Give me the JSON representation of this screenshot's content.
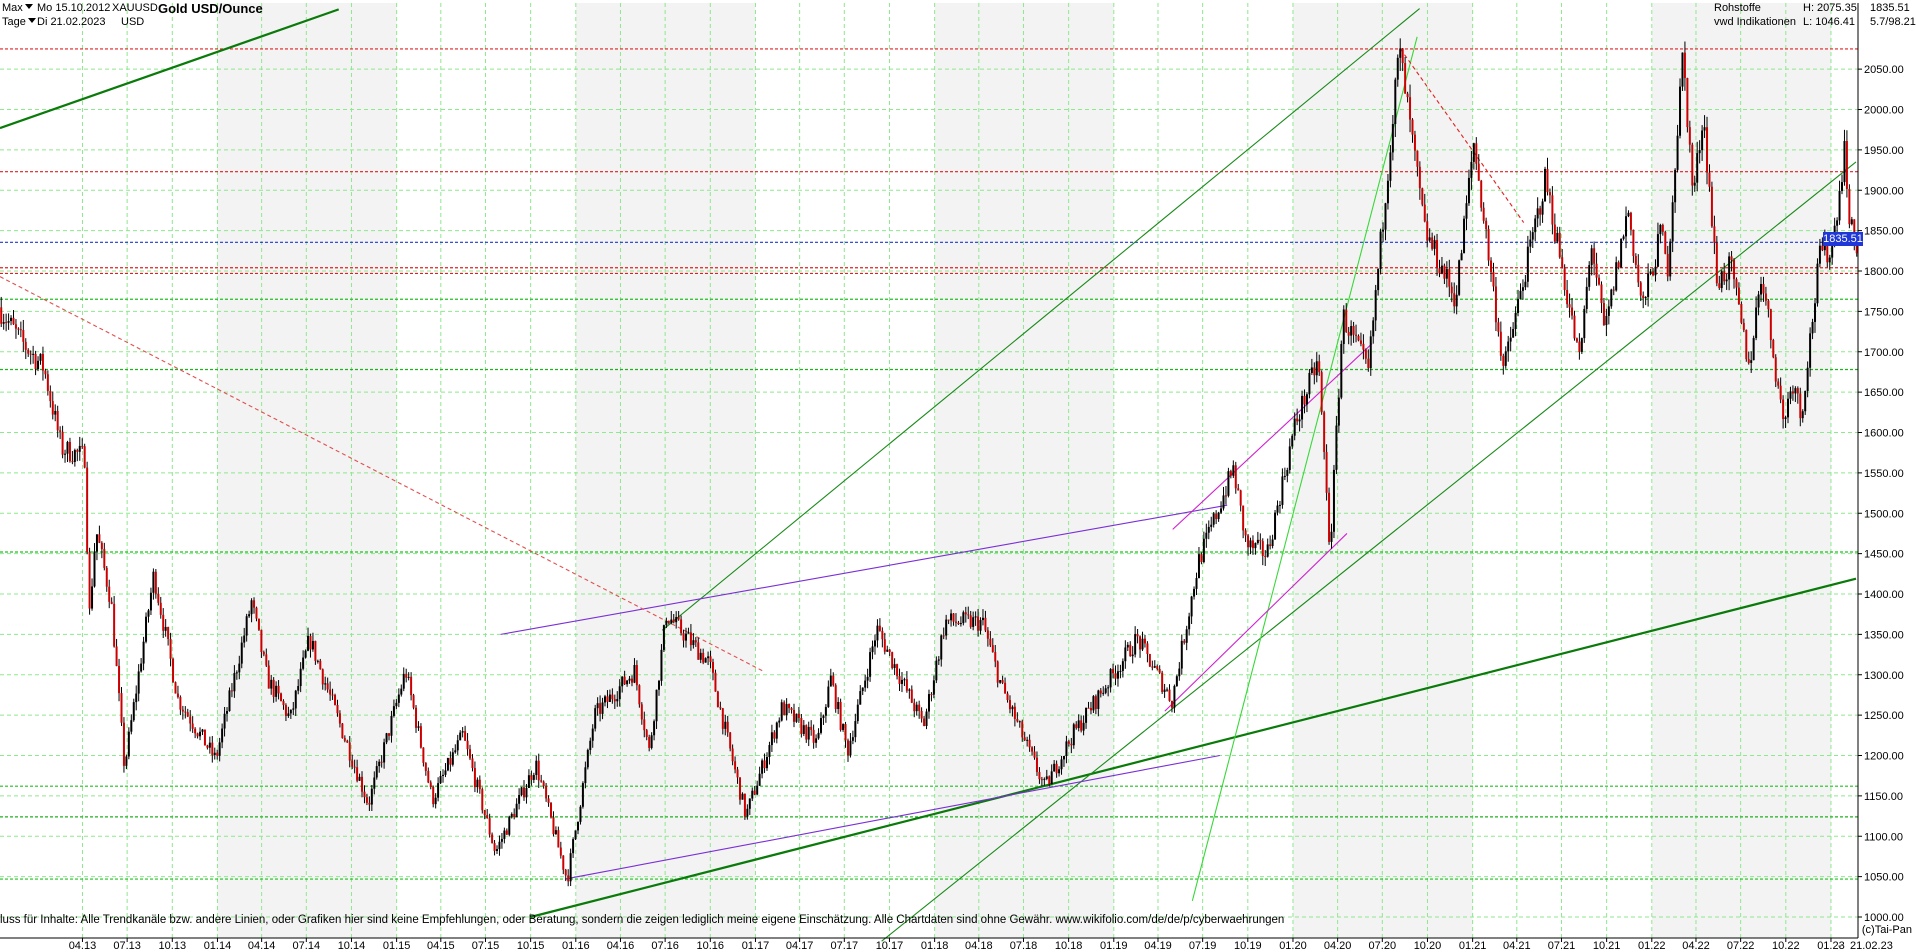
{
  "header": {
    "range_label": "Max",
    "period_label": "Tage",
    "date_from": "Mo 15.10.2012",
    "date_to": "Di 21.02.2023",
    "symbol": "XAUUSD",
    "currency": "USD",
    "title": "Gold USD/Ounce",
    "category": "Rohstoffe",
    "source": "vwd Indikationen",
    "high_label": "H: 2075.35",
    "low_label": "L: 1046.41",
    "last_value": "1835.51",
    "range_info": "5.7/98.21"
  },
  "footer": {
    "disclaimer": "luss für Inhalte: Alle Trendkanäle bzw. andere Linien, oder Grafiken hier sind keine Empfehlungen, oder Beratung, sondern die zeigen lediglich meine eigene Einschätzung. Alle Chartdaten sind ohne Gewähr.  www.wikifolio.com/de/de/p/cyberwaehrungen",
    "copyright": "(c)Tai-Pan",
    "end_date_label": "21.02.23",
    "end_dash": "-"
  },
  "chart_data": {
    "type": "candlestick",
    "title": "Gold USD/Ounce",
    "ylim": [
      1000,
      2100
    ],
    "y_ticks": [
      1000,
      1050,
      1100,
      1150,
      1200,
      1250,
      1300,
      1350,
      1400,
      1450,
      1500,
      1550,
      1600,
      1650,
      1700,
      1750,
      1800,
      1850,
      1900,
      1950,
      2000,
      2050
    ],
    "y_tick_labels": [
      "1000.00",
      "1050.00",
      "1100.00",
      "1150.00",
      "1200.00",
      "1250.00",
      "1300.00",
      "1350.00",
      "1400.00",
      "1450.00",
      "1500.00",
      "1550.00",
      "1600.00",
      "1650.00",
      "1700.00",
      "1750.00",
      "1800.00",
      "1850.00",
      "1900.00",
      "1950.00",
      "2000.00",
      "2050.00"
    ],
    "x_range": [
      "2012-10-15",
      "2023-02-21"
    ],
    "x_ticks": [
      {
        "date": "2013-04-01",
        "label": "04.13"
      },
      {
        "date": "2013-07-01",
        "label": "07.13"
      },
      {
        "date": "2013-10-01",
        "label": "10.13"
      },
      {
        "date": "2014-01-01",
        "label": "01.14"
      },
      {
        "date": "2014-04-01",
        "label": "04.14"
      },
      {
        "date": "2014-07-01",
        "label": "07.14"
      },
      {
        "date": "2014-10-01",
        "label": "10.14"
      },
      {
        "date": "2015-01-01",
        "label": "01.15"
      },
      {
        "date": "2015-04-01",
        "label": "04.15"
      },
      {
        "date": "2015-07-01",
        "label": "07.15"
      },
      {
        "date": "2015-10-01",
        "label": "10.15"
      },
      {
        "date": "2016-01-01",
        "label": "01.16"
      },
      {
        "date": "2016-04-01",
        "label": "04.16"
      },
      {
        "date": "2016-07-01",
        "label": "07.16"
      },
      {
        "date": "2016-10-01",
        "label": "10.16"
      },
      {
        "date": "2017-01-01",
        "label": "01.17"
      },
      {
        "date": "2017-04-01",
        "label": "04.17"
      },
      {
        "date": "2017-07-01",
        "label": "07.17"
      },
      {
        "date": "2017-10-01",
        "label": "10.17"
      },
      {
        "date": "2018-01-01",
        "label": "01.18"
      },
      {
        "date": "2018-04-01",
        "label": "04.18"
      },
      {
        "date": "2018-07-01",
        "label": "07.18"
      },
      {
        "date": "2018-10-01",
        "label": "10.18"
      },
      {
        "date": "2019-01-01",
        "label": "01.19"
      },
      {
        "date": "2019-04-01",
        "label": "04.19"
      },
      {
        "date": "2019-07-01",
        "label": "07.19"
      },
      {
        "date": "2019-10-01",
        "label": "10.19"
      },
      {
        "date": "2020-01-01",
        "label": "01.20"
      },
      {
        "date": "2020-04-01",
        "label": "04.20"
      },
      {
        "date": "2020-07-01",
        "label": "07.20"
      },
      {
        "date": "2020-10-01",
        "label": "10.20"
      },
      {
        "date": "2021-01-01",
        "label": "01.21"
      },
      {
        "date": "2021-04-01",
        "label": "04.21"
      },
      {
        "date": "2021-07-01",
        "label": "07.21"
      },
      {
        "date": "2021-10-01",
        "label": "10.21"
      },
      {
        "date": "2022-01-01",
        "label": "01.22"
      },
      {
        "date": "2022-04-01",
        "label": "04.22"
      },
      {
        "date": "2022-07-01",
        "label": "07.22"
      },
      {
        "date": "2022-10-01",
        "label": "10.22"
      },
      {
        "date": "2023-01-01",
        "label": "01.23"
      }
    ],
    "price_path": [
      {
        "date": "2012-10-15",
        "price": 1755
      },
      {
        "date": "2012-12-01",
        "price": 1712
      },
      {
        "date": "2013-01-15",
        "price": 1680
      },
      {
        "date": "2013-02-20",
        "price": 1580
      },
      {
        "date": "2013-04-10",
        "price": 1570
      },
      {
        "date": "2013-04-16",
        "price": 1360
      },
      {
        "date": "2013-05-01",
        "price": 1480
      },
      {
        "date": "2013-06-01",
        "price": 1390
      },
      {
        "date": "2013-06-28",
        "price": 1185
      },
      {
        "date": "2013-08-27",
        "price": 1425
      },
      {
        "date": "2013-10-15",
        "price": 1270
      },
      {
        "date": "2013-12-31",
        "price": 1195
      },
      {
        "date": "2014-03-14",
        "price": 1390
      },
      {
        "date": "2014-04-15",
        "price": 1295
      },
      {
        "date": "2014-06-01",
        "price": 1245
      },
      {
        "date": "2014-07-10",
        "price": 1345
      },
      {
        "date": "2014-09-15",
        "price": 1230
      },
      {
        "date": "2014-11-07",
        "price": 1140
      },
      {
        "date": "2015-01-22",
        "price": 1305
      },
      {
        "date": "2015-03-17",
        "price": 1145
      },
      {
        "date": "2015-05-18",
        "price": 1225
      },
      {
        "date": "2015-07-24",
        "price": 1080
      },
      {
        "date": "2015-10-14",
        "price": 1190
      },
      {
        "date": "2015-12-17",
        "price": 1046
      },
      {
        "date": "2016-02-11",
        "price": 1250
      },
      {
        "date": "2016-05-02",
        "price": 1305
      },
      {
        "date": "2016-06-01",
        "price": 1205
      },
      {
        "date": "2016-07-06",
        "price": 1375
      },
      {
        "date": "2016-10-01",
        "price": 1315
      },
      {
        "date": "2016-12-15",
        "price": 1125
      },
      {
        "date": "2017-02-27",
        "price": 1260
      },
      {
        "date": "2017-05-09",
        "price": 1215
      },
      {
        "date": "2017-06-06",
        "price": 1295
      },
      {
        "date": "2017-07-10",
        "price": 1205
      },
      {
        "date": "2017-09-08",
        "price": 1357
      },
      {
        "date": "2017-12-12",
        "price": 1237
      },
      {
        "date": "2018-01-25",
        "price": 1366
      },
      {
        "date": "2018-04-11",
        "price": 1365
      },
      {
        "date": "2018-05-21",
        "price": 1283
      },
      {
        "date": "2018-08-16",
        "price": 1160
      },
      {
        "date": "2018-10-11",
        "price": 1225
      },
      {
        "date": "2019-02-20",
        "price": 1345
      },
      {
        "date": "2019-05-02",
        "price": 1268
      },
      {
        "date": "2019-06-25",
        "price": 1440
      },
      {
        "date": "2019-09-04",
        "price": 1555
      },
      {
        "date": "2019-10-01",
        "price": 1460
      },
      {
        "date": "2019-11-12",
        "price": 1450
      },
      {
        "date": "2020-01-08",
        "price": 1610
      },
      {
        "date": "2020-02-24",
        "price": 1690
      },
      {
        "date": "2020-03-19",
        "price": 1452
      },
      {
        "date": "2020-04-14",
        "price": 1745
      },
      {
        "date": "2020-06-05",
        "price": 1675
      },
      {
        "date": "2020-08-07",
        "price": 2075
      },
      {
        "date": "2020-09-28",
        "price": 1850
      },
      {
        "date": "2020-11-30",
        "price": 1765
      },
      {
        "date": "2021-01-06",
        "price": 1959
      },
      {
        "date": "2021-03-08",
        "price": 1677
      },
      {
        "date": "2021-06-01",
        "price": 1915
      },
      {
        "date": "2021-08-09",
        "price": 1688
      },
      {
        "date": "2021-09-03",
        "price": 1835
      },
      {
        "date": "2021-09-29",
        "price": 1722
      },
      {
        "date": "2021-11-16",
        "price": 1877
      },
      {
        "date": "2021-12-15",
        "price": 1753
      },
      {
        "date": "2022-01-25",
        "price": 1853
      },
      {
        "date": "2022-02-03",
        "price": 1790
      },
      {
        "date": "2022-03-08",
        "price": 2070
      },
      {
        "date": "2022-03-29",
        "price": 1890
      },
      {
        "date": "2022-04-18",
        "price": 1998
      },
      {
        "date": "2022-05-16",
        "price": 1787
      },
      {
        "date": "2022-06-13",
        "price": 1805
      },
      {
        "date": "2022-07-21",
        "price": 1681
      },
      {
        "date": "2022-08-15",
        "price": 1800
      },
      {
        "date": "2022-09-28",
        "price": 1615
      },
      {
        "date": "2022-10-21",
        "price": 1670
      },
      {
        "date": "2022-11-03",
        "price": 1617
      },
      {
        "date": "2022-12-13",
        "price": 1825
      },
      {
        "date": "2023-01-05",
        "price": 1825
      },
      {
        "date": "2023-02-02",
        "price": 1960
      },
      {
        "date": "2023-02-09",
        "price": 1860
      },
      {
        "date": "2023-02-21",
        "price": 1835
      }
    ],
    "last_price": 1835.51,
    "high": 2075.35,
    "low": 1046.41,
    "horizontal_lines": [
      {
        "price": 2075,
        "color": "#e02020",
        "style": "dashed"
      },
      {
        "price": 1923,
        "color": "#e02020",
        "style": "dashed"
      },
      {
        "price": 1835.51,
        "color": "#1f37d6",
        "style": "dashed"
      },
      {
        "price": 1804,
        "color": "#e02020",
        "style": "dashed"
      },
      {
        "price": 1797,
        "color": "#e02020",
        "style": "dashed"
      },
      {
        "price": 1765,
        "color": "#20c020",
        "style": "dashed"
      },
      {
        "price": 1678,
        "color": "#20b020",
        "style": "dashed"
      },
      {
        "price": 1452,
        "color": "#20c020",
        "style": "dashed"
      },
      {
        "price": 1162,
        "color": "#20c020",
        "style": "dashed"
      },
      {
        "price": 1124,
        "color": "#20b020",
        "style": "dashed"
      },
      {
        "price": 1047,
        "color": "#20c020",
        "style": "dashed"
      }
    ],
    "trend_lines": [
      {
        "from": {
          "date": "2012-10-15",
          "price": 1977
        },
        "to": {
          "date": "2014-09-05",
          "price": 2124
        },
        "color": "#0a7a0a",
        "style": "solid",
        "weight": "thick"
      },
      {
        "from": {
          "date": "2015-10-01",
          "price": 1000
        },
        "to": {
          "date": "2023-02-21",
          "price": 1419
        },
        "color": "#0a7a0a",
        "style": "solid",
        "weight": "thick"
      },
      {
        "from": {
          "date": "2016-06-25",
          "price": 1355
        },
        "to": {
          "date": "2020-09-15",
          "price": 2125
        },
        "color": "#1a8a1a",
        "style": "solid",
        "weight": "thin"
      },
      {
        "from": {
          "date": "2017-09-15",
          "price": 970
        },
        "to": {
          "date": "2023-02-21",
          "price": 1935
        },
        "color": "#1a8a1a",
        "style": "solid",
        "weight": "thin"
      },
      {
        "from": {
          "date": "2019-06-10",
          "price": 1020
        },
        "to": {
          "date": "2020-09-10",
          "price": 2090
        },
        "color": "#38d838",
        "style": "solid",
        "weight": "thin"
      },
      {
        "from": {
          "date": "2015-08-01",
          "price": 1350
        },
        "to": {
          "date": "2019-08-20",
          "price": 1510
        },
        "color": "#7a2ed8",
        "style": "solid",
        "weight": "thin"
      },
      {
        "from": {
          "date": "2015-12-10",
          "price": 1047
        },
        "to": {
          "date": "2019-08-05",
          "price": 1200
        },
        "color": "#7a2ed8",
        "style": "solid",
        "weight": "thin"
      },
      {
        "from": {
          "date": "2019-05-01",
          "price": 1480
        },
        "to": {
          "date": "2020-06-10",
          "price": 1710
        },
        "color": "#d020d0",
        "style": "solid",
        "weight": "thin"
      },
      {
        "from": {
          "date": "2019-04-15",
          "price": 1255
        },
        "to": {
          "date": "2020-04-20",
          "price": 1475
        },
        "color": "#d020d0",
        "style": "solid",
        "weight": "thin"
      },
      {
        "from": {
          "date": "2012-10-15",
          "price": 1793
        },
        "to": {
          "date": "2017-01-15",
          "price": 1305
        },
        "color": "#e05050",
        "style": "dashed",
        "weight": "thin"
      },
      {
        "from": {
          "date": "2020-08-07",
          "price": 2075
        },
        "to": {
          "date": "2021-04-15",
          "price": 1860
        },
        "color": "#e02020",
        "style": "dashed",
        "weight": "thin"
      }
    ]
  }
}
